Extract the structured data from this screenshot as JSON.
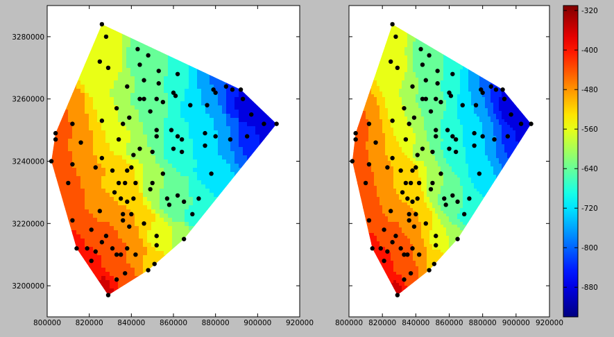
{
  "chart_data": [
    {
      "type": "scatter",
      "title": "",
      "xlabel": "",
      "ylabel": "",
      "xlim": [
        800000,
        920000
      ],
      "ylim": [
        3190000,
        3290000
      ],
      "x_ticks": [
        "800000",
        "820000",
        "840000",
        "860000",
        "880000",
        "900000",
        "920000"
      ],
      "y_ticks": [
        "3200000",
        "3220000",
        "3240000",
        "3260000",
        "3280000"
      ],
      "fill_style": "flat triangle fill",
      "grid": false
    },
    {
      "type": "scatter",
      "title": "",
      "xlabel": "",
      "ylabel": "",
      "xlim": [
        800000,
        920000
      ],
      "ylim": [
        3190000,
        3290000
      ],
      "x_ticks": [
        "800000",
        "820000",
        "840000",
        "860000",
        "880000",
        "900000",
        "920000"
      ],
      "y_ticks": [],
      "fill_style": "smooth contour fill",
      "grid": false
    }
  ],
  "points": [
    [
      826000,
      3284000,
      -580
    ],
    [
      828000,
      3280000,
      -560
    ],
    [
      825000,
      3272000,
      -550
    ],
    [
      829000,
      3270000,
      -560
    ],
    [
      843000,
      3276000,
      -620
    ],
    [
      848000,
      3274000,
      -650
    ],
    [
      844000,
      3271000,
      -640
    ],
    [
      853000,
      3269000,
      -650
    ],
    [
      846000,
      3266000,
      -660
    ],
    [
      838000,
      3264000,
      -600
    ],
    [
      862000,
      3268000,
      -700
    ],
    [
      853000,
      3265000,
      -660
    ],
    [
      844000,
      3260000,
      -630
    ],
    [
      846000,
      3260000,
      -640
    ],
    [
      852000,
      3260000,
      -650
    ],
    [
      855000,
      3259000,
      -650
    ],
    [
      860000,
      3262000,
      -690
    ],
    [
      861000,
      3261000,
      -690
    ],
    [
      868000,
      3258000,
      -710
    ],
    [
      876000,
      3258000,
      -740
    ],
    [
      879000,
      3263000,
      -780
    ],
    [
      880000,
      3262000,
      -780
    ],
    [
      885000,
      3264000,
      -820
    ],
    [
      888000,
      3263000,
      -840
    ],
    [
      892000,
      3263000,
      -860
    ],
    [
      893000,
      3260000,
      -870
    ],
    [
      897000,
      3255000,
      -890
    ],
    [
      903000,
      3252000,
      -900
    ],
    [
      909000,
      3252000,
      -895
    ],
    [
      833000,
      3257000,
      -580
    ],
    [
      849000,
      3256000,
      -630
    ],
    [
      839000,
      3254000,
      -590
    ],
    [
      836000,
      3252000,
      -580
    ],
    [
      826000,
      3253000,
      -540
    ],
    [
      859000,
      3250000,
      -680
    ],
    [
      862000,
      3248000,
      -690
    ],
    [
      852000,
      3250000,
      -650
    ],
    [
      852000,
      3248000,
      -650
    ],
    [
      860000,
      3244000,
      -680
    ],
    [
      864000,
      3247000,
      -700
    ],
    [
      875000,
      3249000,
      -730
    ],
    [
      880000,
      3248000,
      -740
    ],
    [
      887000,
      3247000,
      -780
    ],
    [
      895000,
      3248000,
      -830
    ],
    [
      812000,
      3252000,
      -460
    ],
    [
      804000,
      3249000,
      -440
    ],
    [
      804000,
      3247000,
      -440
    ],
    [
      816000,
      3246000,
      -470
    ],
    [
      834000,
      3247000,
      -550
    ],
    [
      844000,
      3244000,
      -600
    ],
    [
      841000,
      3242000,
      -590
    ],
    [
      826000,
      3241000,
      -510
    ],
    [
      850000,
      3243000,
      -620
    ],
    [
      864000,
      3243000,
      -690
    ],
    [
      875000,
      3245000,
      -720
    ],
    [
      812000,
      3239000,
      -460
    ],
    [
      802000,
      3240000,
      -420
    ],
    [
      823000,
      3238000,
      -490
    ],
    [
      831000,
      3237000,
      -510
    ],
    [
      838000,
      3237000,
      -530
    ],
    [
      840000,
      3238000,
      -540
    ],
    [
      855000,
      3236000,
      -620
    ],
    [
      850000,
      3233000,
      -600
    ],
    [
      834000,
      3233000,
      -510
    ],
    [
      878000,
      3236000,
      -720
    ],
    [
      832000,
      3230000,
      -500
    ],
    [
      837000,
      3233000,
      -520
    ],
    [
      842000,
      3233000,
      -540
    ],
    [
      810000,
      3233000,
      -450
    ],
    [
      849000,
      3231000,
      -590
    ],
    [
      857000,
      3228000,
      -630
    ],
    [
      862000,
      3229000,
      -650
    ],
    [
      835000,
      3228000,
      -500
    ],
    [
      838000,
      3227000,
      -510
    ],
    [
      841000,
      3228000,
      -520
    ],
    [
      825000,
      3224000,
      -470
    ],
    [
      836000,
      3223000,
      -490
    ],
    [
      840000,
      3223000,
      -500
    ],
    [
      865000,
      3227000,
      -650
    ],
    [
      872000,
      3228000,
      -690
    ],
    [
      858000,
      3226000,
      -620
    ],
    [
      869000,
      3223000,
      -670
    ],
    [
      812000,
      3221000,
      -420
    ],
    [
      836000,
      3221000,
      -480
    ],
    [
      839000,
      3219000,
      -480
    ],
    [
      846000,
      3220000,
      -520
    ],
    [
      821000,
      3218000,
      -440
    ],
    [
      828000,
      3216000,
      -450
    ],
    [
      852000,
      3216000,
      -560
    ],
    [
      865000,
      3215000,
      -600
    ],
    [
      826000,
      3214000,
      -430
    ],
    [
      814000,
      3212000,
      -410
    ],
    [
      819000,
      3212000,
      -420
    ],
    [
      831000,
      3212000,
      -440
    ],
    [
      838000,
      3212000,
      -460
    ],
    [
      852000,
      3213000,
      -540
    ],
    [
      823000,
      3211000,
      -420
    ],
    [
      833000,
      3210000,
      -440
    ],
    [
      835000,
      3210000,
      -450
    ],
    [
      842000,
      3210000,
      -480
    ],
    [
      821000,
      3208000,
      -400
    ],
    [
      851000,
      3207000,
      -520
    ],
    [
      848000,
      3205000,
      -500
    ],
    [
      837000,
      3204000,
      -440
    ],
    [
      833000,
      3202000,
      -420
    ],
    [
      829000,
      3197000,
      -340
    ]
  ],
  "colorbar": {
    "cmap": "jet",
    "vmin": -940,
    "vmax": -310,
    "tick_labels": [
      "-320",
      "-400",
      "-480",
      "-560",
      "-640",
      "-720",
      "-800",
      "-880"
    ],
    "tick_values": [
      -320,
      -400,
      -480,
      -560,
      -640,
      -720,
      -800,
      -880
    ]
  },
  "colors": {
    "figure_background": "#bfbfbf",
    "axes_background": "#ffffff",
    "marker": "#000000"
  }
}
